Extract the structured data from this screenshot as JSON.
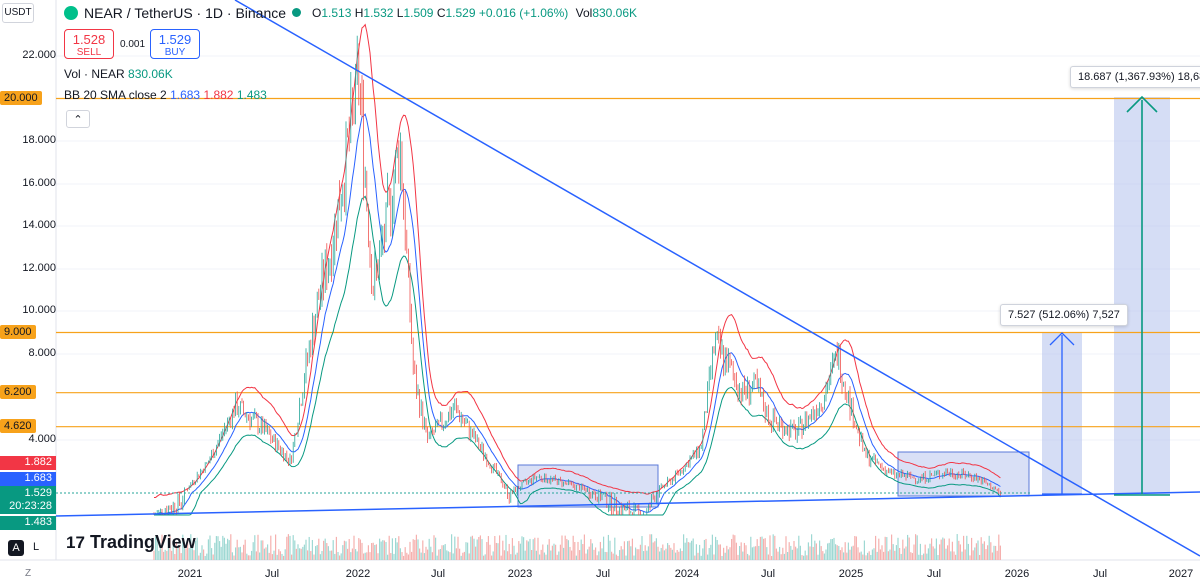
{
  "header": {
    "symbol_box": "USDT",
    "title": "NEAR / TetherUS · 1D · Binance",
    "ohlc": [
      {
        "k": "O",
        "v": "1.513"
      },
      {
        "k": "H",
        "v": "1.532"
      },
      {
        "k": "L",
        "v": "1.509"
      },
      {
        "k": "C",
        "v": "1.529"
      }
    ],
    "change": "+0.016 (+1.06%)",
    "vol_label": "Vol",
    "vol_value": "830.06K"
  },
  "trade": {
    "sell_value": "1.528",
    "sell_label": "SELL",
    "spread": "0.001",
    "buy_value": "1.529",
    "buy_label": "BUY"
  },
  "indicators": {
    "vol_line_label": "Vol · NEAR",
    "vol_line_value": "830.06K",
    "bb_label": "BB 20 SMA close 2",
    "bb_basis": "1.683",
    "bb_upper": "1.882",
    "bb_lower": "1.483",
    "collapse_glyph": "⌃"
  },
  "price_axis": [
    "22.000",
    "18.000",
    "16.000",
    "14.000",
    "12.000",
    "10.000",
    "8.000",
    "4.000"
  ],
  "level_tags": [
    "20.000",
    "9.000",
    "6.200",
    "4.620"
  ],
  "price_pills": {
    "upper": "1.882",
    "basis": "1.683",
    "last": "1.529",
    "countdown": "20:23:28",
    "lower": "1.483"
  },
  "time_axis": [
    "2021",
    "Jul",
    "2022",
    "Jul",
    "2023",
    "Jul",
    "2024",
    "Jul",
    "2025",
    "Jul",
    "2026",
    "Jul",
    "2027"
  ],
  "measures": {
    "small": "7.527 (512.06%) 7,527",
    "large": "18.687 (1,367.93%) 18,68"
  },
  "brand": "TradingView",
  "bottom_left": {
    "a": "A",
    "l": "L",
    "z": "Z"
  },
  "colors": {
    "candle_up": "#26a69a",
    "candle_down": "#ef5350",
    "bb_basis": "#2962ff",
    "bb_upper": "#f23645",
    "bb_lower": "#089981",
    "level": "#f7a21b",
    "trendline": "#2962ff",
    "box_fill": "#b9c6ee"
  },
  "chart_data": {
    "type": "line",
    "x": [
      "2020-10",
      "2020-12",
      "2021-02",
      "2021-04",
      "2021-06",
      "2021-08",
      "2021-09",
      "2021-10",
      "2021-11",
      "2021-12",
      "2022-01",
      "2022-02",
      "2022-03",
      "2022-04",
      "2022-05",
      "2022-06",
      "2022-08",
      "2022-10",
      "2022-12",
      "2023-02",
      "2023-04",
      "2023-06",
      "2023-08",
      "2023-10",
      "2023-12",
      "2024-02",
      "2024-03",
      "2024-04",
      "2024-05",
      "2024-06",
      "2024-07",
      "2024-09",
      "2024-11",
      "2024-12",
      "2025-01",
      "2025-02",
      "2025-04",
      "2025-06",
      "2025-08",
      "2025-10",
      "2025-12"
    ],
    "series": [
      {
        "values": [
          1.2,
          1.4,
          3.0,
          5.6,
          4.5,
          3.0,
          7.0,
          10.5,
          13.0,
          17.0,
          21.0,
          11.0,
          14.0,
          18.0,
          7.0,
          4.0,
          5.5,
          3.5,
          1.5,
          2.3,
          2.0,
          1.6,
          1.3,
          1.2,
          2.2,
          3.6,
          8.5,
          7.5,
          6.2,
          6.5,
          5.0,
          4.3,
          6.0,
          8.0,
          5.5,
          3.3,
          2.4,
          2.2,
          2.5,
          2.3,
          1.53
        ]
      }
    ],
    "levels": [
      20.0,
      9.0,
      6.2,
      4.62
    ],
    "ylim": [
      1.2,
      22.5
    ],
    "y_scale": "log"
  }
}
